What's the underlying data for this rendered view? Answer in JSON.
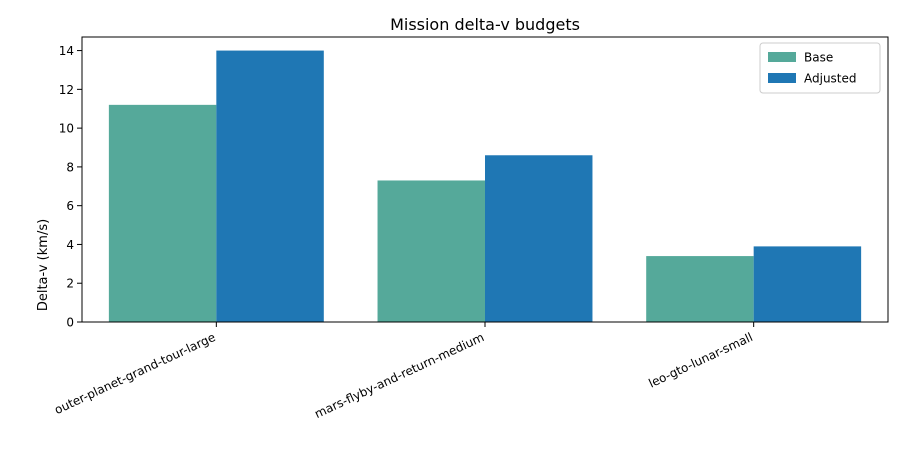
{
  "chart_data": {
    "type": "bar",
    "title": "Mission delta-v budgets",
    "xlabel": "",
    "ylabel": "Delta-v (km/s)",
    "categories": [
      "outer-planet-grand-tour-large",
      "mars-flyby-and-return-medium",
      "leo-gto-lunar-small"
    ],
    "series": [
      {
        "name": "Base",
        "values": [
          11.2,
          7.3,
          3.4
        ],
        "color": "#55a99a"
      },
      {
        "name": "Adjusted",
        "values": [
          14.0,
          8.6,
          3.9
        ],
        "color": "#1f77b4"
      }
    ],
    "ylim": [
      0,
      14.7
    ],
    "yticks": [
      0,
      2,
      4,
      6,
      8,
      10,
      12,
      14
    ],
    "grid": false,
    "legend": "top-right"
  }
}
